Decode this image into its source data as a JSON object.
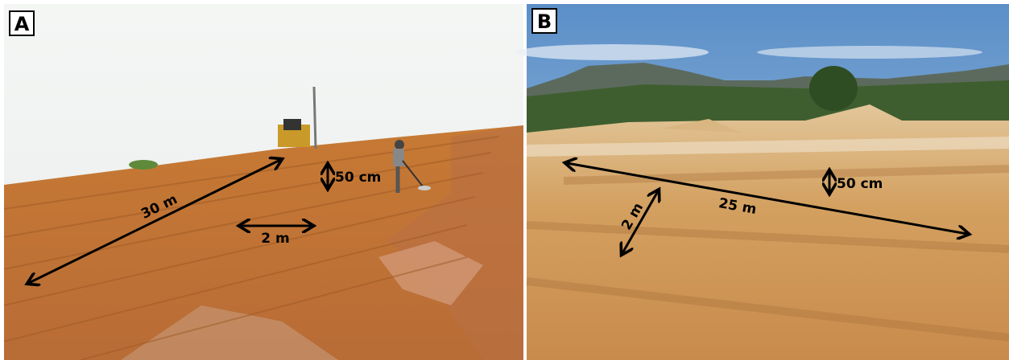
{
  "panels": [
    {
      "label": "A",
      "annotations": [
        "30 m",
        "2 m",
        "50 cm"
      ]
    },
    {
      "label": "B",
      "annotations": [
        "50 cm",
        "25 m",
        "2 m"
      ]
    }
  ]
}
